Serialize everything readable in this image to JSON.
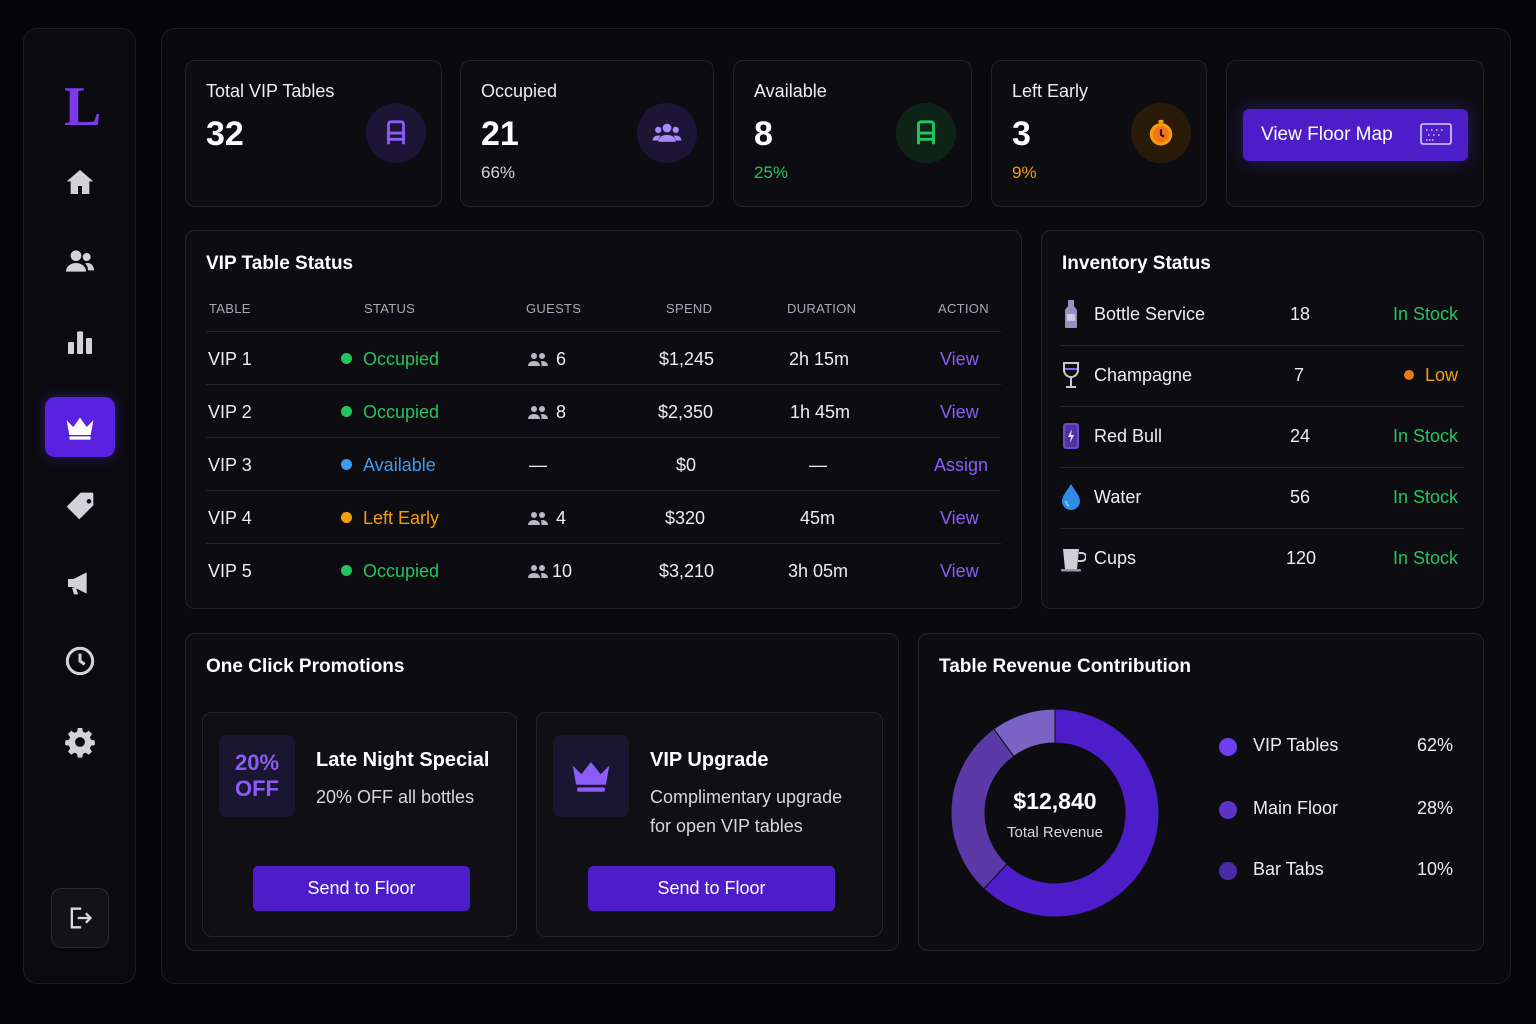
{
  "app": {
    "logo_letter": "L"
  },
  "sidebar": {
    "items": [
      {
        "icon": "home-icon"
      },
      {
        "icon": "users-icon"
      },
      {
        "icon": "bar-chart-icon"
      },
      {
        "icon": "crown-icon",
        "active": true
      },
      {
        "icon": "tag-icon"
      },
      {
        "icon": "megaphone-icon"
      },
      {
        "icon": "clock-icon"
      },
      {
        "icon": "gear-icon"
      }
    ],
    "logout_icon": "logout-icon"
  },
  "stats": {
    "total": {
      "title": "Total VIP Tables",
      "value": "32"
    },
    "occupied": {
      "title": "Occupied",
      "value": "21",
      "sub": "66%"
    },
    "available": {
      "title": "Available",
      "value": "8",
      "sub": "25%"
    },
    "left_early": {
      "title": "Left Early",
      "value": "3",
      "sub": "9%"
    },
    "floor_map_button": "View Floor Map"
  },
  "vip_table": {
    "title": "VIP Table Status",
    "headers": [
      "TABLE",
      "STATUS",
      "GUESTS",
      "SPEND",
      "DURATION",
      "ACTION"
    ],
    "rows": [
      {
        "table": "VIP 1",
        "status": "Occupied",
        "guests": "6",
        "spend": "$1,245",
        "duration": "2h 15m",
        "action": "View"
      },
      {
        "table": "VIP 2",
        "status": "Occupied",
        "guests": "8",
        "spend": "$2,350",
        "duration": "1h 45m",
        "action": "View"
      },
      {
        "table": "VIP 3",
        "status": "Available",
        "guests": "—",
        "spend": "$0",
        "duration": "—",
        "action": "Assign"
      },
      {
        "table": "VIP 4",
        "status": "Left Early",
        "guests": "4",
        "spend": "$320",
        "duration": "45m",
        "action": "View"
      },
      {
        "table": "VIP 5",
        "status": "Occupied",
        "guests": "10",
        "spend": "$3,210",
        "duration": "3h 05m",
        "action": "View"
      }
    ]
  },
  "inventory": {
    "title": "Inventory Status",
    "items": [
      {
        "name": "Bottle Service",
        "qty": "18",
        "status": "In Stock",
        "icon": "bottle-icon"
      },
      {
        "name": "Champagne",
        "qty": "7",
        "status": "Low",
        "icon": "champagne-glass-icon"
      },
      {
        "name": "Red Bull",
        "qty": "24",
        "status": "In Stock",
        "icon": "energy-can-icon"
      },
      {
        "name": "Water",
        "qty": "56",
        "status": "In Stock",
        "icon": "water-drop-icon"
      },
      {
        "name": "Cups",
        "qty": "120",
        "status": "In Stock",
        "icon": "cup-icon"
      }
    ]
  },
  "promotions": {
    "title": "One Click Promotions",
    "items": [
      {
        "badge_line1": "20%",
        "badge_line2": "OFF",
        "title": "Late Night Special",
        "desc": "20% OFF all bottles",
        "button": "Send to Floor"
      },
      {
        "title": "VIP Upgrade",
        "desc_line1": "Complimentary upgrade",
        "desc_line2": "for open VIP tables",
        "button": "Send to Floor",
        "icon": "crown-icon"
      }
    ]
  },
  "revenue": {
    "title": "Table Revenue Contribution",
    "total": "$12,840",
    "total_label": "Total Revenue",
    "legend": [
      {
        "label": "VIP Tables",
        "pct": "62%"
      },
      {
        "label": "Main Floor",
        "pct": "28%"
      },
      {
        "label": "Bar Tabs",
        "pct": "10%"
      }
    ]
  },
  "colors": {
    "accent": "#5b21e0",
    "occupied": "#22c55e",
    "available": "#3b9cf0",
    "left_early": "#f59e0b",
    "link": "#8b5cf6",
    "vip_tables": "#4c1dc9",
    "main_floor": "#5b3aa8",
    "bar_tabs": "#7a63c4"
  },
  "chart_data": {
    "type": "pie",
    "categories": [
      "VIP Tables",
      "Main Floor",
      "Bar Tabs"
    ],
    "values": [
      62,
      28,
      10
    ]
  }
}
